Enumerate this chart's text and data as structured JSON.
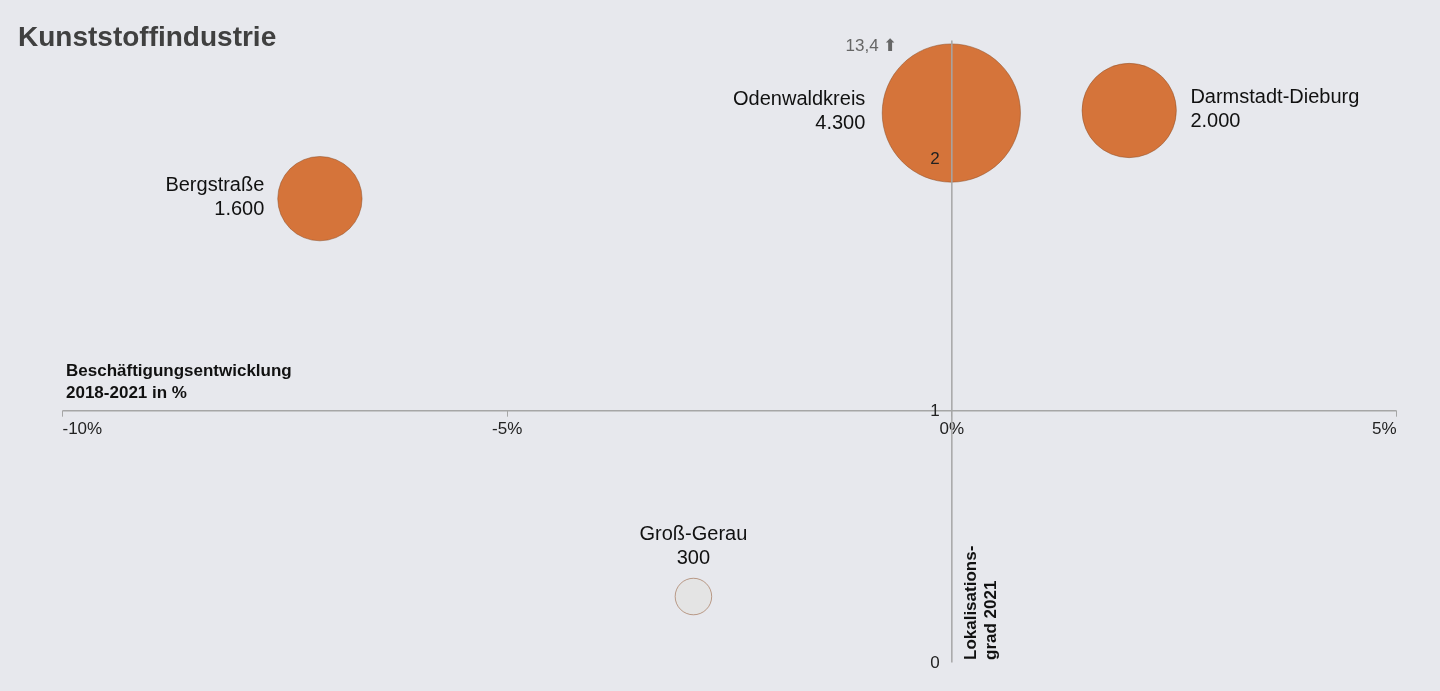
{
  "chart_data": {
    "type": "bubble",
    "title": "Kunststoffindustrie",
    "xlabel": "Beschäftigungsentwicklung\n2018-2021 in %",
    "ylabel": "Lokalisations-\ngrad 2021",
    "series": [
      {
        "name": "Bergstraße",
        "color": "#d5743a",
        "x": [
          -7.1
        ],
        "values": [
          1.84
        ],
        "sizes": [
          1600
        ],
        "value_labels": [
          "1.600"
        ]
      },
      {
        "name": "Odenwaldkreis",
        "color": "#d5743a",
        "x": [
          0.0
        ],
        "values": [
          2.18
        ],
        "sizes": [
          4300
        ],
        "value_labels": [
          "4.300"
        ]
      },
      {
        "name": "Darmstadt-Dieburg",
        "color": "#d5743a",
        "x": [
          2.0
        ],
        "values": [
          2.19
        ],
        "sizes": [
          2000
        ],
        "value_labels": [
          "2.000"
        ]
      },
      {
        "name": "Groß-Gerau",
        "color": "#e4e4e4",
        "x": [
          -2.9
        ],
        "values": [
          0.26
        ],
        "sizes": [
          300
        ],
        "value_labels": [
          "300"
        ]
      }
    ],
    "xlim": [
      -10,
      5
    ],
    "xticks": [
      {
        "value": -10,
        "label": "-10%"
      },
      {
        "value": -5,
        "label": "-5%"
      },
      {
        "value": 0,
        "label": "0%"
      },
      {
        "value": 5,
        "label": "5%"
      }
    ],
    "ylim": [
      0,
      2.47
    ],
    "yticks": [
      0,
      1,
      2
    ],
    "annotations": [
      "13,4 ⬆"
    ],
    "grid": false
  }
}
